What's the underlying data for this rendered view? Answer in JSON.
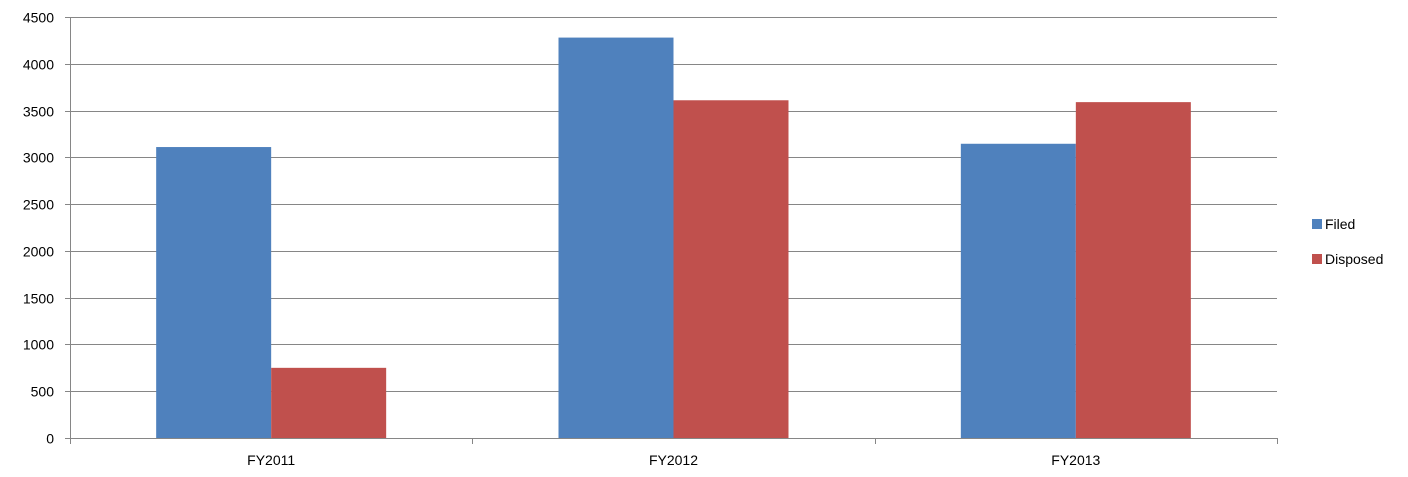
{
  "chart_data": {
    "type": "bar",
    "categories": [
      "FY2011",
      "FY2012",
      "FY2013"
    ],
    "series": [
      {
        "name": "Filed",
        "color": "#4F81BD",
        "values": [
          3110,
          4280,
          3145
        ]
      },
      {
        "name": "Disposed",
        "color": "#C0504D",
        "values": [
          750,
          3610,
          3590
        ]
      }
    ],
    "ylim": [
      0,
      4500
    ],
    "yticks": [
      0,
      500,
      1000,
      1500,
      2000,
      2500,
      3000,
      3500,
      4000,
      4500
    ],
    "grid": true,
    "legend_position": "right",
    "title": "",
    "xlabel": "",
    "ylabel": ""
  }
}
